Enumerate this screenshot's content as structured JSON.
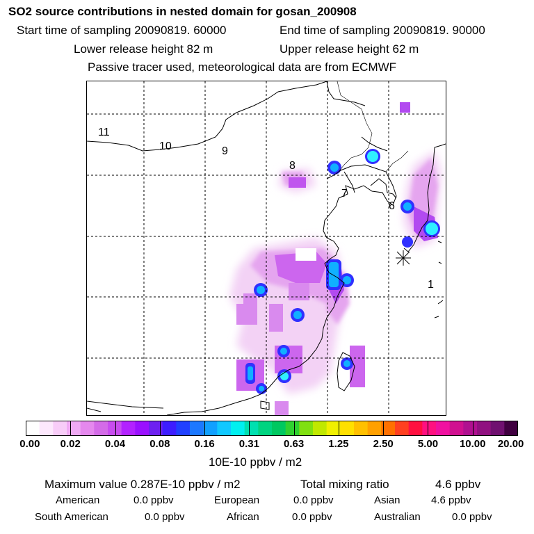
{
  "header": {
    "title": "SO2 source contributions in nested domain for gosan_200908",
    "start_time": "Start time of sampling 20090819. 60000",
    "end_time": "End time of sampling 20090819. 90000",
    "lower_release": "Lower release height   82 m",
    "upper_release": "Upper release height   62 m",
    "note": "Passive tracer used, meteorological data are from ECMWF"
  },
  "map": {
    "region_labels": [
      "11",
      "10",
      "9",
      "8",
      "7",
      "6",
      "1"
    ],
    "receptor_marker": "receptor-star",
    "plume_colors": [
      "#f5d8f5",
      "#e8a8f0",
      "#d070f0",
      "#b000ff",
      "#7010ff",
      "#1a40ff",
      "#00b0ff",
      "#40ffff"
    ]
  },
  "legend": {
    "colors": [
      "#ffffff",
      "#fde8fd",
      "#f8ccf8",
      "#f0aaf4",
      "#e588ee",
      "#d46be8",
      "#c84cf0",
      "#b222ff",
      "#9a10ff",
      "#6d20f0",
      "#3d1dff",
      "#2040ff",
      "#1c78ff",
      "#10a0ff",
      "#10c8ff",
      "#00f0f0",
      "#00e0b0",
      "#00d480",
      "#00c860",
      "#30d030",
      "#80e010",
      "#c0e800",
      "#f0f000",
      "#ffe000",
      "#ffc000",
      "#ffa000",
      "#ff7000",
      "#ff4020",
      "#ff1040",
      "#ff1080",
      "#f010a0",
      "#d01090",
      "#b01090",
      "#901080",
      "#701070",
      "#400040"
    ],
    "tick_labels": [
      "0.00",
      "0.02",
      "0.04",
      "0.08",
      "0.16",
      "0.31",
      "0.63",
      "1.25",
      "2.50",
      "5.00",
      "10.00",
      "20.00"
    ],
    "units": "10E-10 ppbv / m2"
  },
  "stats": {
    "maximum": "Maximum value  0.287E-10 ppbv / m2",
    "total_label": "Total mixing ratio",
    "total_value": "4.6 ppbv",
    "rows": [
      [
        {
          "name": "American",
          "value": "0.0 ppbv"
        },
        {
          "name": "European",
          "value": "0.0 ppbv"
        },
        {
          "name": "Asian",
          "value": "4.6 ppbv"
        }
      ],
      [
        {
          "name": "South American",
          "value": "0.0 ppbv"
        },
        {
          "name": "African",
          "value": "0.0 ppbv"
        },
        {
          "name": "Australian",
          "value": "0.0 ppbv"
        }
      ]
    ]
  }
}
